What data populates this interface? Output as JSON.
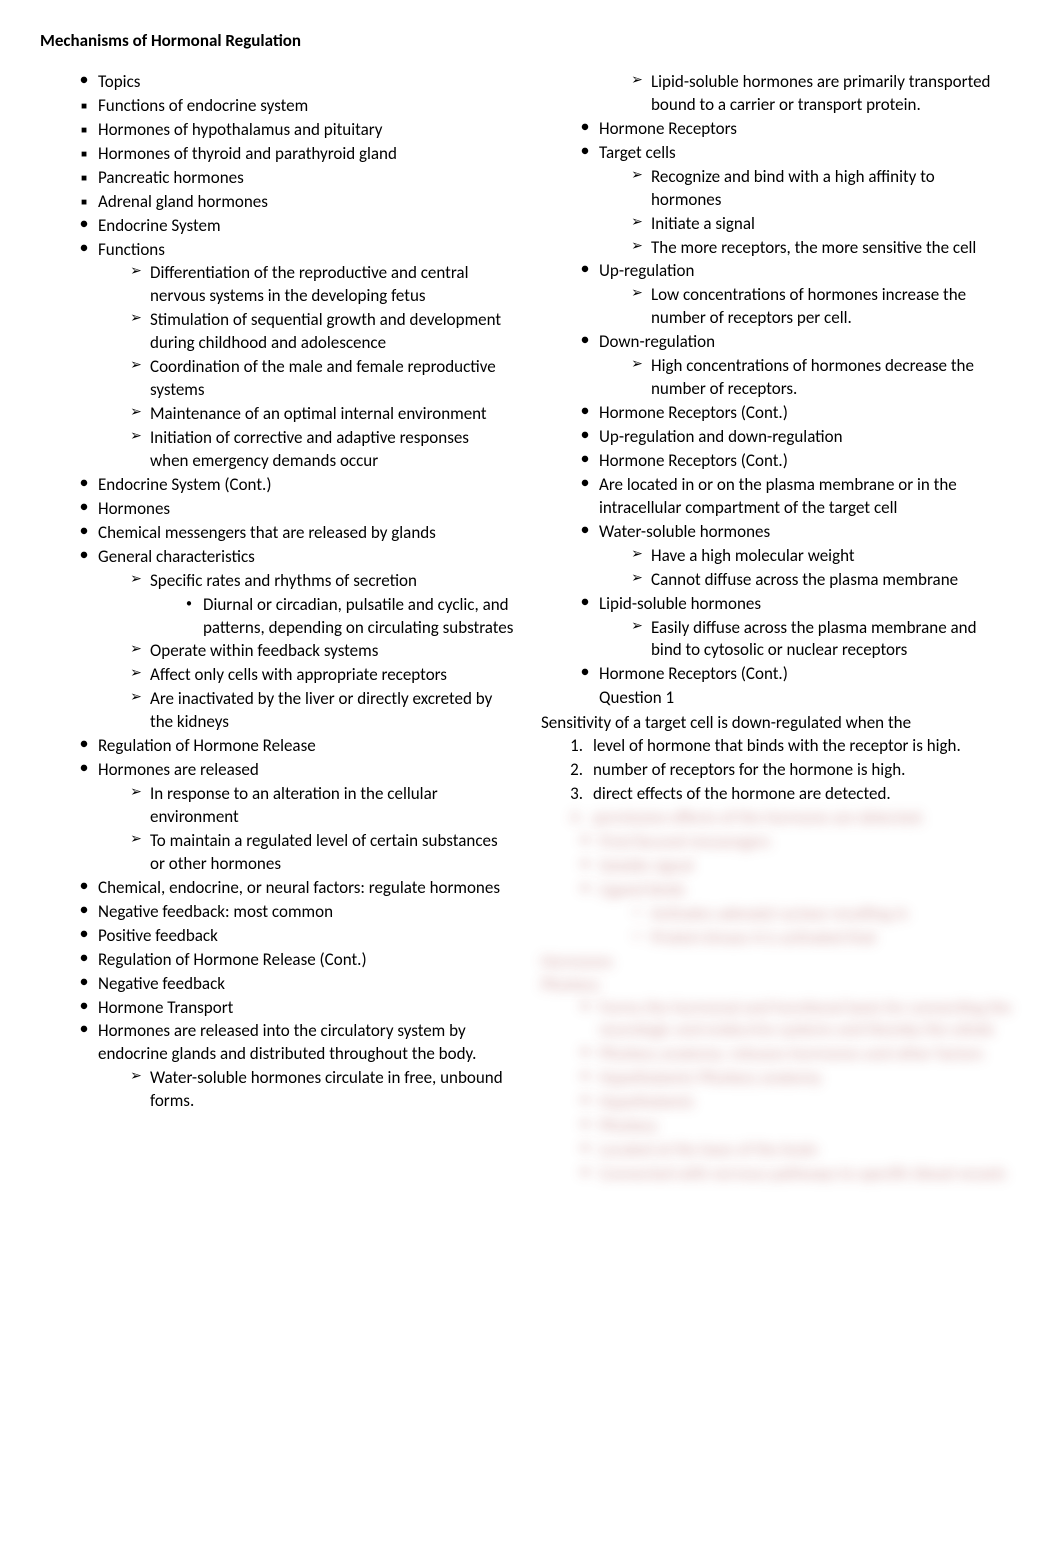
{
  "title": "Mechanisms of Hormonal Regulation",
  "col1": [
    {
      "type": "bullet",
      "text": "Topics"
    },
    {
      "type": "square",
      "text": "Functions of endocrine system"
    },
    {
      "type": "square",
      "text": "Hormones of hypothalamus and pituitary"
    },
    {
      "type": "square",
      "text": "Hormones of thyroid and parathyroid gland"
    },
    {
      "type": "square",
      "text": "Pancreatic hormones"
    },
    {
      "type": "square",
      "text": "Adrenal gland hormones"
    },
    {
      "type": "bullet",
      "text": "Endocrine System"
    },
    {
      "type": "bullet",
      "text": "Functions"
    },
    {
      "type": "arrow",
      "text": "Differentiation of the reproductive and central nervous systems in the developing fetus"
    },
    {
      "type": "arrow",
      "text": "Stimulation of sequential growth and development during childhood and adolescence"
    },
    {
      "type": "arrow",
      "text": "Coordination of the male and female reproductive systems"
    },
    {
      "type": "arrow",
      "text": "Maintenance of an optimal internal environment"
    },
    {
      "type": "arrow",
      "text": "Initiation of corrective and adaptive responses when emergency demands occur"
    },
    {
      "type": "bullet",
      "text": "Endocrine System (Cont.)"
    },
    {
      "type": "bullet",
      "text": "Hormones"
    },
    {
      "type": "bullet",
      "text": "Chemical messengers that are released by glands"
    },
    {
      "type": "bullet",
      "text": "General characteristics"
    },
    {
      "type": "arrow",
      "text": "Specific rates and rhythms of secretion"
    },
    {
      "type": "dot",
      "text": "Diurnal or circadian, pulsatile and cyclic, and patterns, depending on circulating substrates"
    },
    {
      "type": "arrow",
      "text": "Operate within feedback systems"
    },
    {
      "type": "arrow",
      "text": "Affect only cells with appropriate receptors"
    },
    {
      "type": "arrow",
      "text": "Are inactivated by the liver or directly excreted by the kidneys"
    },
    {
      "type": "bullet",
      "text": "Regulation of Hormone Release"
    },
    {
      "type": "bullet",
      "text": "Hormones are released"
    },
    {
      "type": "arrow",
      "text": "In response to an alteration in the cellular environment"
    },
    {
      "type": "arrow",
      "text": "To maintain a regulated level of certain substances or other hormones"
    },
    {
      "type": "bullet",
      "text": "Chemical, endocrine, or neural factors: regulate hormones"
    },
    {
      "type": "bullet",
      "text": "Negative feedback: most common"
    },
    {
      "type": "bullet",
      "text": "Positive feedback"
    },
    {
      "type": "bullet",
      "text": "Regulation of Hormone Release (Cont.)"
    },
    {
      "type": "bullet",
      "text": "Negative feedback"
    },
    {
      "type": "bullet",
      "text": "Hormone Transport"
    },
    {
      "type": "bullet",
      "text": "Hormones are released into the circulatory system by endocrine glands and distributed throughout the body."
    },
    {
      "type": "arrow",
      "text": "Water-soluble hormones circulate in free, unbound forms."
    }
  ],
  "col2": [
    {
      "type": "arrow",
      "text": "Lipid-soluble hormones are primarily transported bound to a carrier or transport protein."
    },
    {
      "type": "bullet",
      "text": "Hormone Receptors"
    },
    {
      "type": "bullet",
      "text": "Target cells"
    },
    {
      "type": "arrow",
      "text": "Recognize and bind with a high affinity to hormones"
    },
    {
      "type": "arrow",
      "text": "Initiate a signal"
    },
    {
      "type": "arrow",
      "text": "The more receptors, the more sensitive the cell"
    },
    {
      "type": "bullet",
      "text": "Up-regulation"
    },
    {
      "type": "arrow",
      "text": "Low concentrations of hormones increase the number of receptors per cell."
    },
    {
      "type": "bullet",
      "text": "Down-regulation"
    },
    {
      "type": "arrow",
      "text": "High concentrations of hormones decrease the number of receptors."
    },
    {
      "type": "bullet",
      "text": "Hormone Receptors (Cont.)"
    },
    {
      "type": "bullet",
      "text": "Up-regulation and down-regulation"
    },
    {
      "type": "bullet",
      "text": "Hormone Receptors (Cont.)"
    },
    {
      "type": "bullet",
      "text": "Are located in or on the plasma membrane or in the intracellular compartment of the target cell"
    },
    {
      "type": "bullet",
      "text": "Water-soluble hormones"
    },
    {
      "type": "arrow",
      "text": "Have a high molecular weight"
    },
    {
      "type": "arrow",
      "text": "Cannot diffuse across the plasma membrane"
    },
    {
      "type": "bullet",
      "text": "Lipid-soluble hormones"
    },
    {
      "type": "arrow",
      "text": "Easily diffuse across the plasma membrane and bind to cytosolic or nuclear receptors"
    },
    {
      "type": "bullet",
      "text": "Hormone Receptors (Cont.)"
    },
    {
      "type": "plain",
      "text": "Question 1",
      "indent": 58
    },
    {
      "type": "q",
      "text": "Sensitivity of a target cell is down-regulated when the"
    },
    {
      "type": "num",
      "n": "1.",
      "text": "level of hormone that binds with the receptor is high."
    },
    {
      "type": "num",
      "n": "2.",
      "text": "number of receptors for the hormone is high."
    },
    {
      "type": "num",
      "n": "3.",
      "text": "direct effects of the hormone are detected."
    }
  ],
  "blurred": {
    "color": "#c89090",
    "items": [
      {
        "type": "num",
        "n": "4.",
        "text": "permissive effects of the hormone are detected."
      },
      {
        "type": "bullet",
        "text": "First/Second messengers"
      },
      {
        "type": "bullet",
        "text": "Soluble signal"
      },
      {
        "type": "bullet",
        "text": "Ligand binds"
      },
      {
        "type": "arrow",
        "text": "Activates adenylyl cyclase resulting in"
      },
      {
        "type": "arrow",
        "text": "Protein kinase A is activated that"
      },
      {
        "type": "plain",
        "text": "Hormones"
      },
      {
        "type": "plain",
        "text": "Pituitary"
      },
      {
        "type": "bullet",
        "text": "Forms the hormonal and functional basis for connecting the neurologic and endocrine systems and thereby the whole"
      },
      {
        "type": "bullet",
        "text": "Pituitary anatomy: releases hormones and other factors"
      },
      {
        "type": "bullet",
        "text": "Hypothalamic Pituitary anatomy"
      },
      {
        "type": "bullet",
        "text": "Hypothalamic"
      },
      {
        "type": "bullet",
        "text": "Pituitary"
      },
      {
        "type": "bullet",
        "text": "Located at the base of the brain"
      },
      {
        "type": "bullet",
        "text": "Connected with nervous pathways to specific blood vessels"
      }
    ]
  }
}
